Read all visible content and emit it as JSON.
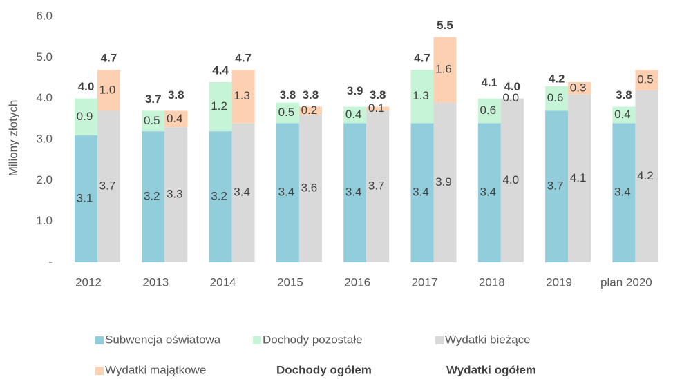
{
  "chart_data": {
    "type": "grouped_stacked_bar",
    "y_label": "Miliony złotych",
    "categories": [
      "2012",
      "2013",
      "2014",
      "2015",
      "2016",
      "2017",
      "2018",
      "2019",
      "plan 2020"
    ],
    "ylim": [
      0,
      6
    ],
    "yticks": [
      {
        "value": 0,
        "label": "-"
      },
      {
        "value": 1,
        "label": "1.0"
      },
      {
        "value": 2,
        "label": "2.0"
      },
      {
        "value": 3,
        "label": "3.0"
      },
      {
        "value": 4,
        "label": "4.0"
      },
      {
        "value": 5,
        "label": "5.0"
      },
      {
        "value": 6,
        "label": "6.0"
      }
    ],
    "grid": false,
    "series": [
      {
        "name": "Subwencja oświatowa",
        "color": "#92cddc",
        "stack": 0,
        "values": [
          3.1,
          3.2,
          3.2,
          3.4,
          3.4,
          3.4,
          3.4,
          3.7,
          3.4
        ],
        "value_labels": [
          "3.1",
          "3.2",
          "3.2",
          "3.4",
          "3.4",
          "3.4",
          "3.4",
          "3.7",
          "3.4"
        ]
      },
      {
        "name": "Dochody pozostałe",
        "color": "#c6f4d6",
        "stack": 0,
        "values": [
          0.9,
          0.5,
          1.2,
          0.5,
          0.4,
          1.3,
          0.6,
          0.6,
          0.4
        ],
        "value_labels": [
          "0.9",
          "0.5",
          "1.2",
          "0.5",
          "0.4",
          "1.3",
          "0.6",
          "0.6",
          "0.4"
        ]
      },
      {
        "name": "Wydatki bieżące",
        "color": "#d9d9d9",
        "stack": 1,
        "values": [
          3.7,
          3.3,
          3.4,
          3.6,
          3.7,
          3.9,
          4.0,
          4.1,
          4.2
        ],
        "value_labels": [
          "3.7",
          "3.3",
          "3.4",
          "3.6",
          "3.7",
          "3.9",
          "4.0",
          "4.1",
          "4.2"
        ]
      },
      {
        "name": "Wydatki majątkowe",
        "color": "#fcd0b1",
        "stack": 1,
        "values": [
          1.0,
          0.4,
          1.3,
          0.2,
          0.1,
          1.6,
          0.0,
          0.3,
          0.5
        ],
        "value_labels": [
          "1.0",
          "0.4",
          "1.3",
          "0.2",
          "0.1",
          "1.6",
          "0.0",
          "0.3",
          "0.5"
        ]
      }
    ],
    "totals": [
      {
        "name": "Dochody ogółem",
        "stack": 0,
        "values": [
          4.0,
          3.7,
          4.4,
          3.8,
          3.9,
          4.7,
          4.1,
          4.2,
          3.8
        ],
        "value_labels": [
          "4.0",
          "3.7",
          "4.4",
          "3.8",
          "3.9",
          "4.7",
          "4.1",
          "4.2",
          "3.8"
        ]
      },
      {
        "name": "Wydatki ogółem",
        "stack": 1,
        "values": [
          4.7,
          3.8,
          4.7,
          3.8,
          3.8,
          5.5,
          4.0,
          null,
          null
        ],
        "value_labels": [
          "4.7",
          "3.8",
          "4.7",
          "3.8",
          "3.8",
          "5.5",
          "4.0",
          null,
          null
        ]
      }
    ]
  }
}
